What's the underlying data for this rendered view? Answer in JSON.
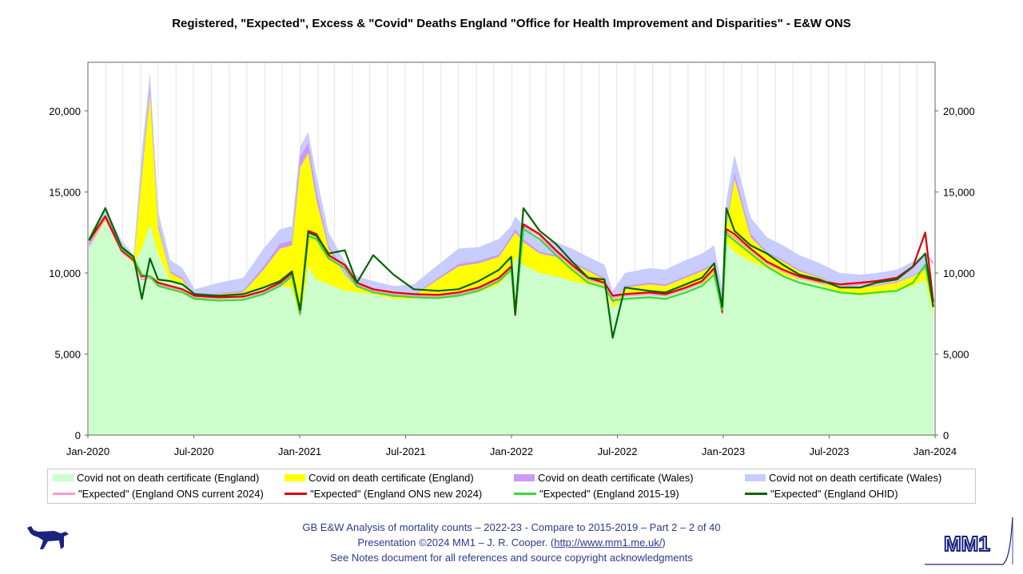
{
  "title": "Registered, \"Expected\", Excess & \"Covid\" Deaths England \"Office for Health Improvement and Disparities\" - E&W ONS",
  "chart_data": {
    "type": "area",
    "title": "Registered, \"Expected\", Excess & \"Covid\" Deaths England \"Office for Health Improvement and Disparities\" - E&W ONS",
    "xlabel": "",
    "ylabel": "",
    "ylim": [
      0,
      23000
    ],
    "xlim": [
      "2020-01-01",
      "2024-01-01"
    ],
    "x_ticks": [
      "Jan-2020",
      "Jul-2020",
      "Jan-2021",
      "Jul-2021",
      "Jan-2022",
      "Jul-2022",
      "Jan-2023",
      "Jul-2023",
      "Jan-2024"
    ],
    "y_ticks": [
      "0",
      "5,000",
      "10,000",
      "15,000",
      "20,000"
    ],
    "y_tick_values": [
      0,
      5000,
      10000,
      15000,
      20000
    ],
    "grid": true,
    "legend_position": "bottom",
    "x_dates": [
      "2020-01-03",
      "2020-01-31",
      "2020-02-28",
      "2020-03-20",
      "2020-04-03",
      "2020-04-17",
      "2020-05-01",
      "2020-05-22",
      "2020-06-12",
      "2020-07-03",
      "2020-08-14",
      "2020-09-25",
      "2020-10-30",
      "2020-11-27",
      "2020-12-18",
      "2021-01-01",
      "2021-01-15",
      "2021-01-29",
      "2021-02-19",
      "2021-03-19",
      "2021-04-09",
      "2021-05-07",
      "2021-06-11",
      "2021-07-16",
      "2021-08-27",
      "2021-10-01",
      "2021-11-05",
      "2021-12-10",
      "2021-12-31",
      "2022-01-07",
      "2022-01-21",
      "2022-02-18",
      "2022-03-18",
      "2022-04-15",
      "2022-05-13",
      "2022-06-10",
      "2022-06-24",
      "2022-07-15",
      "2022-08-26",
      "2022-09-23",
      "2022-10-28",
      "2022-11-25",
      "2022-12-16",
      "2022-12-30",
      "2023-01-06",
      "2023-01-20",
      "2023-02-17",
      "2023-03-17",
      "2023-04-14",
      "2023-05-12",
      "2023-06-16",
      "2023-07-21",
      "2023-08-25",
      "2023-09-22",
      "2023-10-27",
      "2023-11-24",
      "2023-12-15",
      "2023-12-29"
    ],
    "series": [
      {
        "name": "Covid not on death certificate (England)",
        "color": "#ccffcc",
        "kind": "area",
        "values": [
          11600,
          13200,
          11400,
          10500,
          11500,
          13000,
          11200,
          9500,
          9400,
          8300,
          8600,
          8700,
          9100,
          9200,
          9100,
          7200,
          10400,
          9600,
          9300,
          8900,
          8800,
          8700,
          8400,
          8400,
          8600,
          8600,
          8800,
          9300,
          10100,
          11000,
          10500,
          10000,
          9800,
          9500,
          9300,
          9200,
          7800,
          8600,
          8700,
          8800,
          9100,
          9300,
          9800,
          7500,
          11900,
          11300,
          10700,
          10300,
          9800,
          9600,
          9300,
          8800,
          8600,
          8700,
          8900,
          9200,
          9600,
          7400
        ]
      },
      {
        "name": "Covid on death certificate (England)",
        "color": "#ffff00",
        "kind": "area",
        "values": [
          11600,
          13300,
          11500,
          10600,
          16000,
          21000,
          12800,
          10000,
          9600,
          8400,
          8700,
          8800,
          10200,
          11500,
          11700,
          16500,
          17400,
          14500,
          11500,
          9900,
          9100,
          8800,
          8500,
          8600,
          9600,
          10400,
          10600,
          11000,
          12100,
          12500,
          11900,
          11200,
          11000,
          10600,
          10100,
          9600,
          8100,
          9100,
          9300,
          9200,
          9700,
          10100,
          10500,
          8300,
          12800,
          15800,
          12200,
          11200,
          10700,
          10100,
          9700,
          9200,
          9100,
          9200,
          9400,
          9800,
          10200,
          7800
        ]
      },
      {
        "name": "Covid on death certificate (Wales)",
        "color": "#cc99ff",
        "kind": "area",
        "values": [
          11700,
          13400,
          11600,
          10700,
          16300,
          21500,
          13000,
          10100,
          9700,
          8450,
          8750,
          8900,
          10400,
          11800,
          12000,
          17200,
          18000,
          15000,
          11700,
          10000,
          9150,
          8850,
          8550,
          8650,
          9700,
          10550,
          10750,
          11150,
          12300,
          12700,
          12100,
          11300,
          11100,
          10700,
          10200,
          9700,
          8150,
          9200,
          9400,
          9300,
          9800,
          10200,
          10600,
          8350,
          13000,
          16200,
          12400,
          11300,
          10800,
          10200,
          9750,
          9250,
          9150,
          9250,
          9450,
          9850,
          10300,
          7850
        ]
      },
      {
        "name": "Covid not on death certificate (Wales)",
        "color": "#c8ccff",
        "kind": "area",
        "values": [
          12000,
          14000,
          12000,
          11100,
          17500,
          22400,
          13800,
          10800,
          10300,
          9000,
          9400,
          9700,
          11500,
          12700,
          12900,
          17800,
          18700,
          16000,
          12500,
          10700,
          9800,
          9500,
          9200,
          9300,
          10500,
          11500,
          11600,
          12100,
          12900,
          13500,
          12900,
          12100,
          11900,
          11500,
          11000,
          10500,
          8900,
          10000,
          10300,
          10200,
          10800,
          11200,
          11700,
          9000,
          14500,
          17300,
          13400,
          12200,
          11700,
          11100,
          10600,
          10000,
          9900,
          10000,
          10200,
          10700,
          11200,
          7400
        ]
      },
      {
        "name": "\"Expected\" (England ONS current 2024)",
        "color": "#ff99cc",
        "kind": "line",
        "values": [
          11800,
          13400,
          11300,
          10700,
          9600,
          9700,
          9300,
          9100,
          8900,
          8500,
          8450,
          8500,
          8800,
          9300,
          9900,
          7400,
          12500,
          12300,
          11000,
          10400,
          9300,
          8900,
          8700,
          8600,
          8550,
          8700,
          9000,
          9600,
          10300,
          7600,
          12900,
          12300,
          11300,
          10400,
          9600,
          9300,
          8500,
          8600,
          8700,
          8600,
          9000,
          9400,
          10200,
          7500,
          12500,
          12200,
          11400,
          10600,
          10100,
          9700,
          9400,
          9200,
          9300,
          9400,
          9600,
          10300,
          11200,
          10600
        ]
      },
      {
        "name": "\"Expected\" (England ONS new 2024)",
        "color": "#dd0000",
        "kind": "line",
        "values": [
          12000,
          13500,
          11400,
          10800,
          9800,
          9800,
          9400,
          9200,
          9000,
          8600,
          8500,
          8550,
          8900,
          9400,
          10000,
          7500,
          12600,
          12400,
          11100,
          10500,
          9400,
          9000,
          8800,
          8700,
          8650,
          8800,
          9100,
          9700,
          10400,
          7400,
          13000,
          12400,
          11400,
          10500,
          9700,
          9400,
          8600,
          8700,
          8800,
          8700,
          9100,
          9500,
          10300,
          7600,
          12700,
          12400,
          11500,
          10700,
          10200,
          9800,
          9500,
          9300,
          9400,
          9500,
          9700,
          10400,
          12500,
          8200
        ]
      },
      {
        "name": "\"Expected\" (England 2015-19)",
        "color": "#33dd33",
        "kind": "line",
        "values": [
          12100,
          14000,
          11500,
          10900,
          9900,
          9800,
          9200,
          9000,
          8800,
          8400,
          8300,
          8350,
          8700,
          9200,
          9800,
          7500,
          12300,
          12100,
          10900,
          10300,
          9200,
          8800,
          8600,
          8500,
          8450,
          8600,
          8900,
          9500,
          10200,
          7600,
          12700,
          12100,
          11100,
          10200,
          9400,
          9100,
          8300,
          8400,
          8500,
          8400,
          8800,
          9200,
          9900,
          7700,
          12400,
          12000,
          11200,
          10400,
          9800,
          9400,
          9100,
          8800,
          8700,
          8800,
          8900,
          9400,
          10500,
          7900
        ]
      },
      {
        "name": "\"Expected\" (England OHID)",
        "color": "#006600",
        "kind": "line",
        "values": [
          12000,
          14000,
          11600,
          11000,
          8400,
          10900,
          9600,
          9500,
          9300,
          8700,
          8600,
          8700,
          9100,
          9500,
          10100,
          7700,
          12500,
          12300,
          11200,
          11400,
          9400,
          11100,
          9900,
          9000,
          8900,
          9000,
          9500,
          10200,
          11000,
          7500,
          14000,
          12600,
          11800,
          10700,
          9700,
          9600,
          6000,
          9100,
          8900,
          8800,
          9300,
          9700,
          10600,
          7900,
          14000,
          12600,
          11700,
          11200,
          10500,
          9900,
          9600,
          9100,
          9100,
          9400,
          9600,
          10400,
          11200,
          7900
        ]
      }
    ]
  },
  "legend": [
    {
      "label": "Covid not on death certificate (England)",
      "color": "#ccffcc",
      "kind": "area"
    },
    {
      "label": "Covid on death certificate (England)",
      "color": "#ffff00",
      "kind": "area"
    },
    {
      "label": "Covid on death certificate (Wales)",
      "color": "#cc99ff",
      "kind": "area"
    },
    {
      "label": "Covid not on death certificate (Wales)",
      "color": "#c8ccff",
      "kind": "area"
    },
    {
      "label": "\"Expected\" (England ONS current 2024)",
      "color": "#ff99cc",
      "kind": "line"
    },
    {
      "label": "\"Expected\" (England ONS new 2024)",
      "color": "#dd0000",
      "kind": "line"
    },
    {
      "label": "\"Expected\" (England 2015-19)",
      "color": "#33dd33",
      "kind": "line"
    },
    {
      "label": "\"Expected\" (England OHID)",
      "color": "#006600",
      "kind": "line"
    }
  ],
  "footer": {
    "line1": "GB E&W Analysis of mortality counts – 2022-23 - Compare to 2015-2019 – Part 2 – 2 of 40",
    "line2_prefix": "Presentation ©2024 MM1 – J. R. Cooper. (",
    "line2_link": "http://www.mm1.me.uk/",
    "line2_suffix": ")",
    "line3": "See Notes document for all references and source copyright acknowledgments"
  },
  "logo_text": "MM1",
  "colors": {
    "footer_text": "#2d3a8c",
    "dog_logo": "#1a237e",
    "plot_border": "#666666"
  }
}
